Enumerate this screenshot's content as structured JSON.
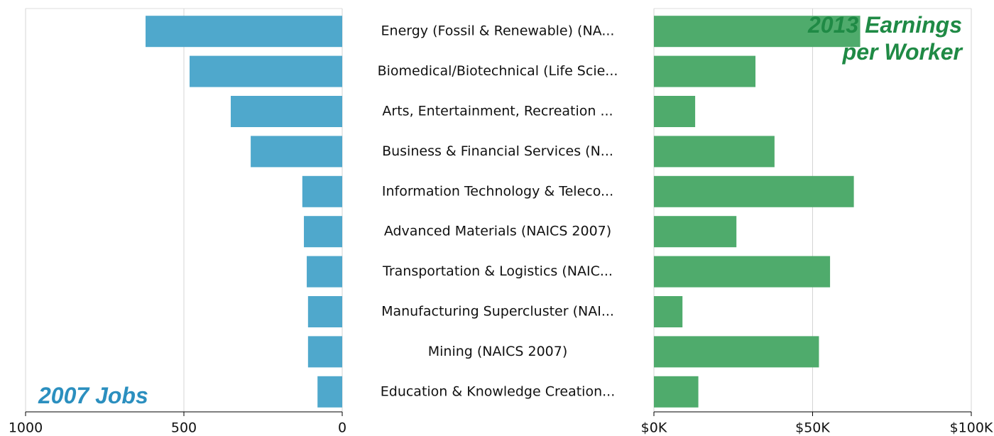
{
  "chart_data": {
    "type": "butterfly-bar",
    "categories": [
      "Energy (Fossil & Renewable) (NA...",
      "Biomedical/Biotechnical (Life Scie...",
      "Arts, Entertainment, Recreation ...",
      "Business & Financial Services (N...",
      "Information Technology & Teleco...",
      "Advanced Materials (NAICS 2007)",
      "Transportation & Logistics (NAIC...",
      "Manufacturing Supercluster (NAI...",
      "Mining (NAICS 2007)",
      "Education & Knowledge Creation..."
    ],
    "series": [
      {
        "name": "2007 Jobs",
        "color": "#4fa8cc",
        "values": [
          621,
          482,
          352,
          289,
          126,
          121,
          112,
          108,
          108,
          78
        ]
      },
      {
        "name": "2013 Earnings per Worker",
        "color": "#4fab6c",
        "axis": "x2",
        "values": [
          65000,
          32000,
          13000,
          38000,
          63000,
          26000,
          55500,
          9000,
          52000,
          14000
        ]
      }
    ],
    "xlim": [
      1000,
      0
    ],
    "xticks": [
      1000,
      500,
      0
    ],
    "x2lim": [
      0,
      100000
    ],
    "x2ticks": [
      {
        "value": 0,
        "label": "$0K"
      },
      {
        "value": 50000,
        "label": "$50K"
      },
      {
        "value": 100000,
        "label": "$100K"
      }
    ],
    "grid": true
  }
}
